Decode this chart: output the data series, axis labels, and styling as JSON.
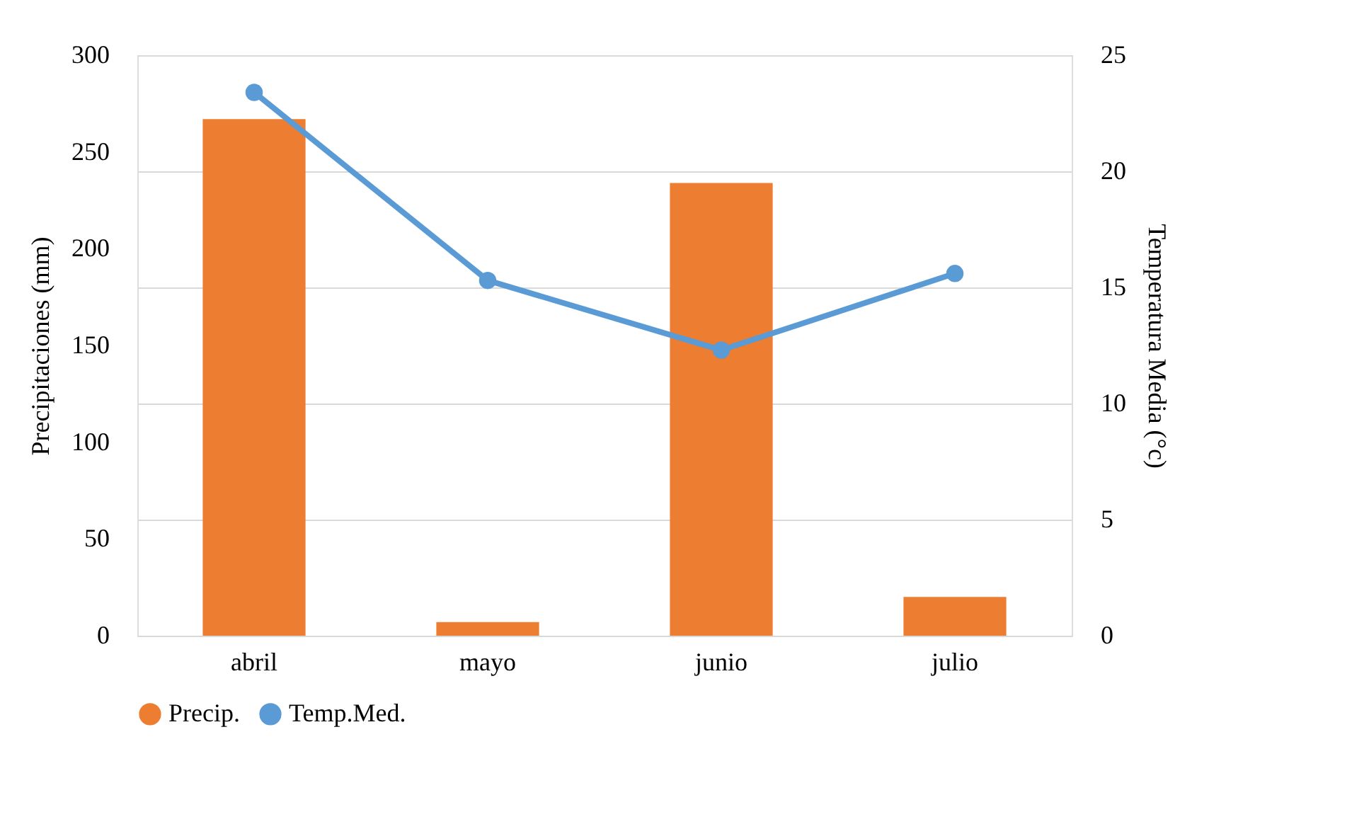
{
  "chart_data": {
    "type": "bar",
    "categories": [
      "abril",
      "mayo",
      "junio",
      "julio"
    ],
    "series": [
      {
        "name": "Precip.",
        "color": "#ed7d31",
        "values": [
          267,
          7,
          234,
          20
        ]
      },
      {
        "name": "Temp.Med.",
        "type": "line",
        "axis": "y2",
        "color": "#5b9bd5",
        "marker": "circle",
        "values": [
          23.4,
          15.3,
          12.3,
          15.6
        ]
      }
    ],
    "ylabel": "Precipitaciones (mm)",
    "y2label": "Temperatura Media (°c)",
    "ylim": [
      0,
      300
    ],
    "yticks": [
      0,
      50,
      100,
      150,
      200,
      250,
      300
    ],
    "y2lim": [
      0,
      25
    ],
    "y2ticks": [
      0,
      5,
      10,
      15,
      20,
      25
    ],
    "grid": true,
    "legend": "bottom"
  }
}
